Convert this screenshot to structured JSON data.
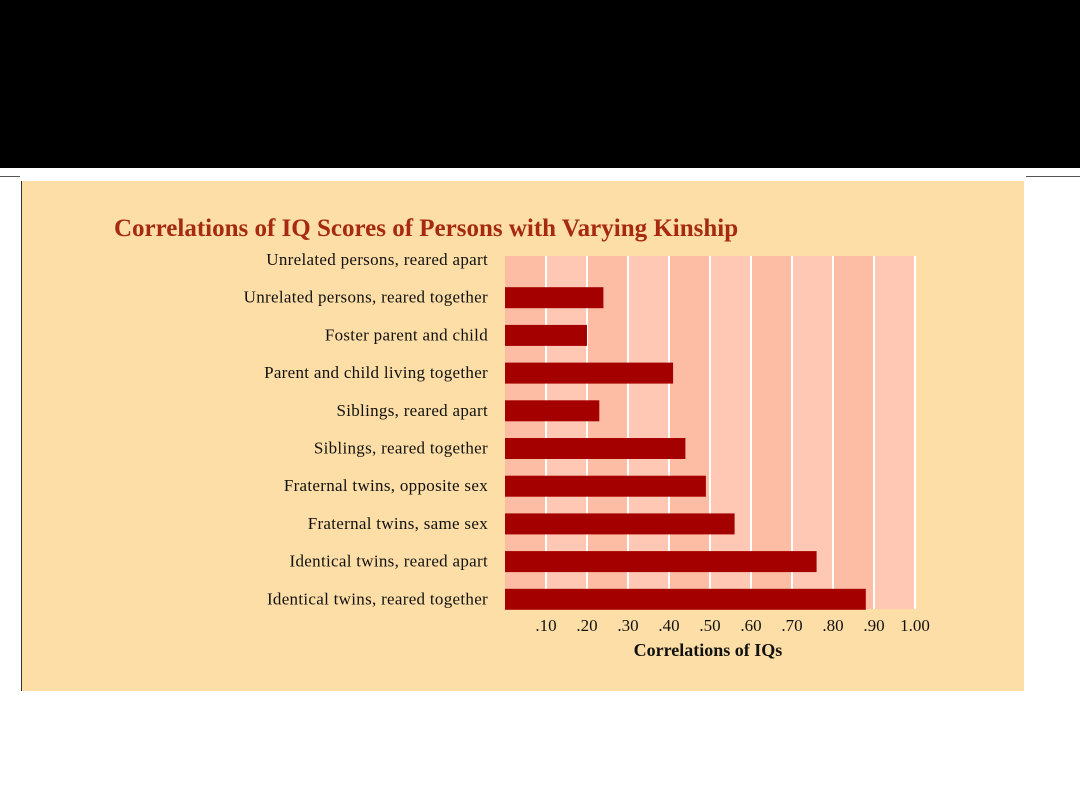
{
  "chart_data": {
    "type": "bar",
    "orientation": "horizontal",
    "title": "Correlations of IQ Scores of Persons with Varying Kinship",
    "xlabel": "Correlations of IQs",
    "ylabel": "",
    "xlim": [
      0,
      1.0
    ],
    "x_ticks": [
      0.1,
      0.2,
      0.3,
      0.4,
      0.5,
      0.6,
      0.7,
      0.8,
      0.9,
      1.0
    ],
    "x_tick_labels": [
      ".10",
      ".20",
      ".30",
      ".40",
      ".50",
      ".60",
      ".70",
      ".80",
      ".90",
      "1.00"
    ],
    "grid": true,
    "categories": [
      "Unrelated persons, reared apart",
      "Unrelated persons, reared together",
      "Foster parent and child",
      "Parent and child living together",
      "Siblings, reared apart",
      "Siblings, reared together",
      "Fraternal twins, opposite sex",
      "Fraternal twins, same sex",
      "Identical twins, reared apart",
      "Identical twins, reared together"
    ],
    "values": [
      0.0,
      0.24,
      0.2,
      0.41,
      0.23,
      0.44,
      0.49,
      0.56,
      0.76,
      0.88
    ],
    "colors": {
      "bar": "#a50000",
      "plot_background": "#fdbca4",
      "band_alternate": "#ffc8b4",
      "gridline": "#ffffff",
      "panel_background": "#fddea6",
      "title": "#a52a10"
    }
  }
}
